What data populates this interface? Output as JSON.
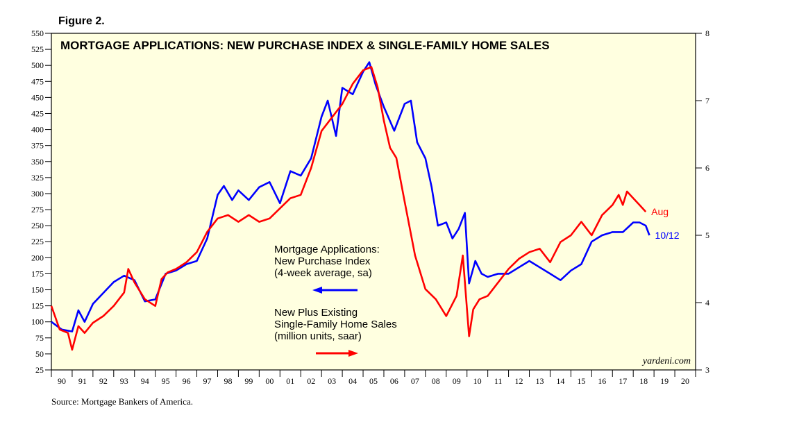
{
  "figure_label": "Figure 2.",
  "source": "Source: Mortgage Bankers of America.",
  "watermark": "yardeni.com",
  "chart_data": {
    "type": "line",
    "title": "MORTGAGE APPLICATIONS: NEW PURCHASE INDEX & SINGLE-FAMILY HOME SALES",
    "plot_background": "#FFFFE0",
    "x_range": [
      1990.0,
      2021.0
    ],
    "x_tick_labels": [
      "90",
      "91",
      "92",
      "93",
      "94",
      "95",
      "96",
      "97",
      "98",
      "99",
      "00",
      "01",
      "02",
      "03",
      "04",
      "05",
      "06",
      "07",
      "08",
      "09",
      "10",
      "11",
      "12",
      "13",
      "14",
      "15",
      "16",
      "17",
      "18",
      "19",
      "20"
    ],
    "left_axis": {
      "range": [
        25,
        550
      ],
      "ticks": [
        25,
        50,
        75,
        100,
        125,
        150,
        175,
        200,
        225,
        250,
        275,
        300,
        325,
        350,
        375,
        400,
        425,
        450,
        475,
        500,
        525,
        550
      ]
    },
    "right_axis": {
      "range": [
        3,
        8
      ],
      "ticks": [
        3,
        4,
        5,
        6,
        7,
        8
      ]
    },
    "annotations": [
      {
        "lines": [
          "Mortgage Applications:",
          "New Purchase Index",
          "(4-week average, sa)"
        ],
        "arrow": "left",
        "color": "#0000FF"
      },
      {
        "lines": [
          "New Plus Existing",
          "Single-Family Home Sales",
          "(million units, saar)"
        ],
        "arrow": "right",
        "color": "#FF0000"
      }
    ],
    "series": [
      {
        "label": "10/12",
        "axis": "left",
        "color": "#0000FF",
        "x": [
          1990.0,
          1990.5,
          1991.0,
          1991.3,
          1991.6,
          1992.0,
          1992.5,
          1993.0,
          1993.5,
          1994.0,
          1994.5,
          1995.0,
          1995.5,
          1996.0,
          1996.5,
          1997.0,
          1997.5,
          1998.0,
          1998.3,
          1998.7,
          1999.0,
          1999.5,
          2000.0,
          2000.5,
          2001.0,
          2001.5,
          2002.0,
          2002.5,
          2003.0,
          2003.3,
          2003.7,
          2004.0,
          2004.5,
          2005.0,
          2005.3,
          2005.6,
          2006.0,
          2006.5,
          2007.0,
          2007.3,
          2007.6,
          2008.0,
          2008.3,
          2008.6,
          2009.0,
          2009.3,
          2009.6,
          2009.9,
          2010.1,
          2010.4,
          2010.7,
          2011.0,
          2011.5,
          2012.0,
          2012.5,
          2013.0,
          2013.5,
          2014.0,
          2014.5,
          2015.0,
          2015.5,
          2016.0,
          2016.5,
          2017.0,
          2017.5,
          2018.0,
          2018.3,
          2018.6,
          2018.78
        ],
        "y": [
          100,
          88,
          85,
          118,
          100,
          128,
          145,
          162,
          172,
          165,
          132,
          135,
          175,
          180,
          190,
          195,
          230,
          298,
          312,
          290,
          305,
          290,
          310,
          318,
          285,
          335,
          328,
          355,
          420,
          445,
          390,
          465,
          455,
          490,
          505,
          470,
          435,
          398,
          440,
          445,
          380,
          355,
          310,
          250,
          255,
          230,
          245,
          270,
          160,
          195,
          175,
          170,
          175,
          175,
          185,
          195,
          185,
          175,
          165,
          180,
          190,
          225,
          235,
          240,
          240,
          255,
          255,
          250,
          235
        ]
      },
      {
        "label": "Aug",
        "axis": "right",
        "color": "#FF0000",
        "x": [
          1990.0,
          1990.4,
          1990.8,
          1991.0,
          1991.3,
          1991.6,
          1992.0,
          1992.5,
          1993.0,
          1993.5,
          1993.7,
          1994.0,
          1994.5,
          1995.0,
          1995.3,
          1995.6,
          1996.0,
          1996.5,
          1997.0,
          1997.5,
          1998.0,
          1998.5,
          1999.0,
          1999.5,
          2000.0,
          2000.5,
          2001.0,
          2001.5,
          2002.0,
          2002.5,
          2003.0,
          2003.5,
          2004.0,
          2004.5,
          2005.0,
          2005.4,
          2005.7,
          2006.0,
          2006.3,
          2006.6,
          2007.0,
          2007.5,
          2008.0,
          2008.5,
          2009.0,
          2009.5,
          2009.8,
          2010.1,
          2010.3,
          2010.6,
          2011.0,
          2011.5,
          2012.0,
          2012.5,
          2013.0,
          2013.5,
          2014.0,
          2014.5,
          2015.0,
          2015.5,
          2016.0,
          2016.5,
          2017.0,
          2017.3,
          2017.5,
          2017.7,
          2018.0,
          2018.3,
          2018.6
        ],
        "y": [
          3.95,
          3.6,
          3.55,
          3.3,
          3.65,
          3.55,
          3.7,
          3.8,
          3.95,
          4.15,
          4.5,
          4.3,
          4.05,
          3.95,
          4.35,
          4.45,
          4.5,
          4.6,
          4.75,
          5.05,
          5.25,
          5.3,
          5.2,
          5.3,
          5.2,
          5.25,
          5.4,
          5.55,
          5.6,
          6.0,
          6.55,
          6.75,
          6.95,
          7.25,
          7.45,
          7.5,
          7.2,
          6.7,
          6.3,
          6.15,
          5.5,
          4.7,
          4.2,
          4.05,
          3.8,
          4.1,
          4.7,
          3.5,
          3.9,
          4.05,
          4.1,
          4.3,
          4.5,
          4.65,
          4.75,
          4.8,
          4.6,
          4.9,
          5.0,
          5.2,
          5.0,
          5.3,
          5.45,
          5.6,
          5.45,
          5.65,
          5.55,
          5.45,
          5.35
        ]
      }
    ]
  }
}
